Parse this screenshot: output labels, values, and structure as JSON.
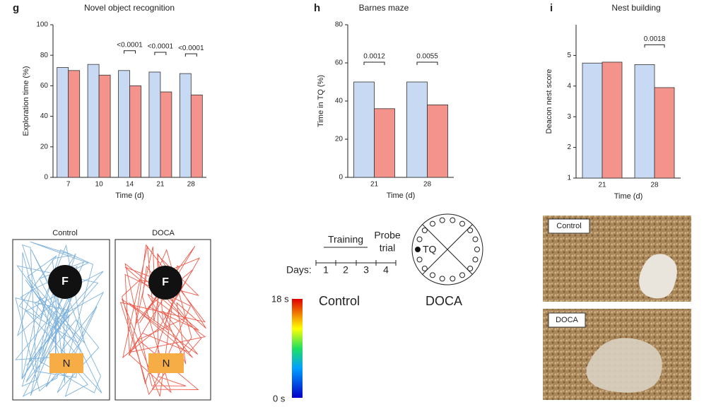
{
  "chart_data": [
    {
      "type": "bar",
      "panel": "g",
      "title": "Novel object recognition",
      "categories": [
        "7",
        "10",
        "14",
        "21",
        "28"
      ],
      "series": [
        {
          "color": "#c8daf3",
          "values": [
            72,
            74,
            70,
            69,
            68
          ]
        },
        {
          "color": "#f3938b",
          "values": [
            70,
            67,
            60,
            56,
            54
          ]
        }
      ],
      "ylim": [
        0,
        100
      ],
      "yticks": [
        0,
        20,
        40,
        60,
        80,
        100
      ],
      "ylabel": "Exploration time (%)",
      "xlabel": "Time (d)",
      "annotations": [
        null,
        null,
        "<0.0001",
        "<0.0001",
        "<0.0001"
      ]
    },
    {
      "type": "bar",
      "panel": "h",
      "title": "Barnes  maze",
      "categories": [
        "21",
        "28"
      ],
      "series": [
        {
          "color": "#c8daf3",
          "values": [
            50,
            50
          ]
        },
        {
          "color": "#f3938b",
          "values": [
            36,
            38
          ]
        }
      ],
      "ylim": [
        0,
        80
      ],
      "yticks": [
        0,
        20,
        40,
        60,
        80
      ],
      "ylabel": "Time in TQ (%)",
      "xlabel": "Time (d)",
      "annotations": [
        "0.0012",
        "0.0055"
      ]
    },
    {
      "type": "bar",
      "panel": "i",
      "title": "Nest building",
      "categories": [
        "21",
        "28"
      ],
      "series": [
        {
          "color": "#c8daf3",
          "values": [
            4.75,
            4.7
          ]
        },
        {
          "color": "#f3938b",
          "values": [
            4.78,
            3.95
          ]
        }
      ],
      "ylim": [
        1,
        6
      ],
      "yticks": [
        1,
        2,
        3,
        4,
        5
      ],
      "ylabel": "Deacon nest score",
      "xlabel": "Time (d)",
      "annotations": [
        null,
        "0.0018"
      ]
    }
  ],
  "tracking": {
    "labels": [
      "Control",
      "DOCA"
    ],
    "food": "F",
    "novel": "N"
  },
  "barnes_schematic": {
    "training": "Training",
    "probe": [
      "Probe",
      "trial"
    ],
    "days_label": "Days:",
    "days": [
      "1",
      "2",
      "3",
      "4"
    ],
    "target": "TQ"
  },
  "heatmaps": {
    "labels": [
      "Control",
      "DOCA"
    ],
    "scale_max": "18 s",
    "scale_min": "0 s"
  },
  "nest_photos": {
    "labels": [
      "Control",
      "DOCA"
    ]
  }
}
